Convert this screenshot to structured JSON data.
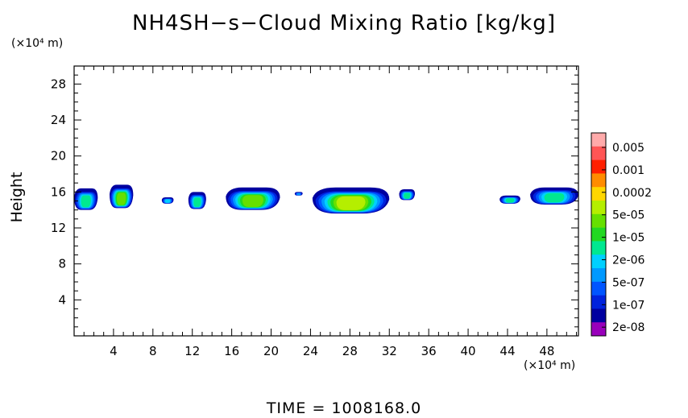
{
  "chart_data": {
    "type": "heatmap",
    "title": "NH4SH−s−Cloud Mixing Ratio [kg/kg]",
    "ylabel": "Height",
    "y_unit_label": "(×10⁴ m)",
    "x_unit_label": "(×10⁴ m)",
    "footer": "TIME = 1008168.0",
    "xlim": [
      0,
      51.2
    ],
    "ylim": [
      0,
      30
    ],
    "x_ticks": [
      4,
      8,
      12,
      16,
      20,
      24,
      28,
      32,
      36,
      40,
      44,
      48
    ],
    "y_ticks": [
      4,
      8,
      12,
      16,
      20,
      24,
      28
    ],
    "colorbar": {
      "labels": [
        "0.005",
        "0.001",
        "0.0002",
        "5e-05",
        "1e-05",
        "2e-06",
        "5e-07",
        "1e-07",
        "2e-08"
      ],
      "colors": [
        "#ffaaaa",
        "#ff5555",
        "#ff2000",
        "#ff8c00",
        "#ffd700",
        "#b5ee00",
        "#66e000",
        "#22d822",
        "#00e890",
        "#00d0ff",
        "#0099ff",
        "#0055ff",
        "#0022dd",
        "#0000a0",
        "#9900bb"
      ]
    },
    "cloud_patches": [
      {
        "x0": 0.0,
        "x1": 2.4,
        "top": 16.4,
        "bottom": 14.0,
        "peak": 0.3
      },
      {
        "x0": 3.6,
        "x1": 6.0,
        "top": 16.8,
        "bottom": 14.2,
        "peak": 0.55
      },
      {
        "x0": 8.9,
        "x1": 10.1,
        "top": 15.4,
        "bottom": 14.7,
        "peak": 0.1
      },
      {
        "x0": 11.6,
        "x1": 13.4,
        "top": 16.0,
        "bottom": 14.1,
        "peak": 0.3
      },
      {
        "x0": 15.4,
        "x1": 20.9,
        "top": 16.5,
        "bottom": 14.0,
        "peak": 0.45
      },
      {
        "x0": 22.4,
        "x1": 23.2,
        "top": 16.0,
        "bottom": 15.6,
        "peak": 0.0
      },
      {
        "x0": 24.2,
        "x1": 32.0,
        "top": 16.5,
        "bottom": 13.6,
        "peak": 0.6
      },
      {
        "x0": 33.0,
        "x1": 34.6,
        "top": 16.3,
        "bottom": 15.1,
        "peak": 0.25
      },
      {
        "x0": 43.2,
        "x1": 45.3,
        "top": 15.6,
        "bottom": 14.7,
        "peak": 0.2
      },
      {
        "x0": 46.3,
        "x1": 51.2,
        "top": 16.5,
        "bottom": 14.6,
        "peak": 0.3
      }
    ]
  }
}
